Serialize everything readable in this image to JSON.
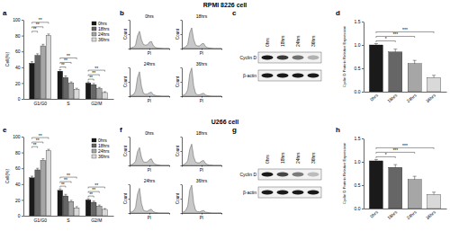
{
  "figure_titles": [
    "RPMI 8226 cell",
    "U266 cell"
  ],
  "chart_data": [
    {
      "type": "bar",
      "panel": "a",
      "y_label": "Cell(%)",
      "categories": [
        "G1/G0",
        "S",
        "G2/M"
      ],
      "series": [
        {
          "name": "0hrs",
          "color": "#1a1a1a",
          "values": [
            45,
            35,
            20
          ],
          "errors": [
            2,
            2,
            1.5
          ]
        },
        {
          "name": "18hrs",
          "color": "#666666",
          "values": [
            55,
            27,
            18
          ],
          "errors": [
            2,
            2,
            1.5
          ]
        },
        {
          "name": "24hrs",
          "color": "#a6a6a6",
          "values": [
            67,
            20,
            13
          ],
          "errors": [
            2,
            1.5,
            1.5
          ]
        },
        {
          "name": "36hrs",
          "color": "#d9d9d9",
          "values": [
            80,
            12,
            8
          ],
          "errors": [
            2,
            1.5,
            1
          ]
        }
      ],
      "significance": [
        [
          "**",
          "**",
          "**"
        ],
        [
          "**",
          "**",
          "**"
        ],
        [
          "**",
          "**",
          "**"
        ]
      ],
      "ylim": [
        0,
        100
      ],
      "yticks": [
        0,
        20,
        40,
        60,
        80,
        100
      ],
      "legend": "upper right"
    },
    {
      "type": "area",
      "panel": "b",
      "x_label": "PI",
      "y_label": "Count",
      "color": "#555555",
      "x": [
        0,
        5,
        10,
        15,
        20,
        25,
        30,
        35,
        40,
        45,
        50,
        55,
        60,
        65,
        70,
        75,
        80,
        85,
        90,
        95,
        100
      ],
      "series": [
        {
          "name": "0hrs",
          "values": [
            2,
            3,
            5,
            12,
            45,
            60,
            30,
            14,
            12,
            13,
            22,
            25,
            10,
            4,
            2,
            1,
            1,
            0,
            0,
            0,
            0
          ]
        },
        {
          "name": "18hrs",
          "values": [
            2,
            3,
            6,
            15,
            55,
            72,
            32,
            12,
            9,
            9,
            16,
            18,
            7,
            3,
            2,
            1,
            0,
            0,
            0,
            0,
            0
          ]
        },
        {
          "name": "24hrs",
          "values": [
            2,
            3,
            6,
            18,
            65,
            85,
            34,
            10,
            7,
            7,
            12,
            14,
            5,
            3,
            1,
            1,
            0,
            0,
            0,
            0,
            0
          ]
        },
        {
          "name": "36hrs",
          "values": [
            2,
            4,
            8,
            22,
            78,
            98,
            36,
            9,
            5,
            5,
            8,
            10,
            4,
            2,
            1,
            0,
            0,
            0,
            0,
            0,
            0
          ]
        }
      ],
      "xlim": [
        0,
        100
      ],
      "xticks": [
        0,
        50,
        100
      ],
      "ylim": [
        0,
        100
      ],
      "yticks": [
        0,
        50,
        100
      ],
      "tick_labels": false
    },
    {
      "type": "blot",
      "panel": "c",
      "color": "#1a1a1a",
      "categories": [
        "0hrs",
        "18hrs",
        "24hrs",
        "36hrs"
      ],
      "series": [
        {
          "name": "Cyclin D",
          "values": [
            1,
            0.85,
            0.6,
            0.3
          ]
        },
        {
          "name": "β-actin",
          "values": [
            1,
            1,
            1,
            1
          ]
        }
      ]
    },
    {
      "type": "bar",
      "panel": "d",
      "y_label": "Cyclin D Protein Relative Expression",
      "categories": [
        "0hrs",
        "18hrs",
        "24hrs",
        "36hrs"
      ],
      "values": [
        1.0,
        0.85,
        0.6,
        0.3
      ],
      "errors": [
        0.03,
        0.06,
        0.07,
        0.05
      ],
      "colors": [
        "#1a1a1a",
        "#666666",
        "#a6a6a6",
        "#d9d9d9"
      ],
      "significance": [
        "*",
        "***",
        "***"
      ],
      "ylim": [
        0,
        1.5
      ],
      "yticks": [
        {
          "value": 0,
          "label": "0.0"
        },
        0.5,
        {
          "value": 1,
          "label": "1.0"
        },
        {
          "value": 1.5,
          "label": "1.5"
        }
      ]
    },
    {
      "type": "bar",
      "panel": "e",
      "y_label": "Cell(%)",
      "categories": [
        "G1/G0",
        "S",
        "G2/M"
      ],
      "series": [
        {
          "name": "0hrs",
          "color": "#1a1a1a",
          "values": [
            48,
            32,
            20
          ],
          "errors": [
            2,
            2,
            1.5
          ]
        },
        {
          "name": "18hrs",
          "color": "#666666",
          "values": [
            58,
            25,
            17
          ],
          "errors": [
            2,
            2,
            1.5
          ]
        },
        {
          "name": "24hrs",
          "color": "#a6a6a6",
          "values": [
            70,
            18,
            12
          ],
          "errors": [
            2,
            1.5,
            1.5
          ]
        },
        {
          "name": "36hrs",
          "color": "#d9d9d9",
          "values": [
            82,
            10,
            8
          ],
          "errors": [
            2,
            1.5,
            1
          ]
        }
      ],
      "significance": [
        [
          "**",
          "**",
          "**"
        ],
        [
          "**",
          "**",
          "**"
        ],
        [
          "**",
          "**",
          "**"
        ]
      ],
      "ylim": [
        0,
        100
      ],
      "yticks": [
        0,
        20,
        40,
        60,
        80,
        100
      ],
      "legend": "upper right"
    },
    {
      "type": "area",
      "panel": "f",
      "x_label": "PI",
      "y_label": "Count",
      "color": "#555555",
      "x": [
        0,
        5,
        10,
        15,
        20,
        25,
        30,
        35,
        40,
        45,
        50,
        55,
        60,
        65,
        70,
        75,
        80,
        85,
        90,
        95,
        100
      ],
      "series": [
        {
          "name": "0hrs",
          "values": [
            1,
            3,
            6,
            14,
            48,
            62,
            28,
            12,
            11,
            12,
            20,
            23,
            9,
            4,
            2,
            1,
            0,
            0,
            0,
            0,
            0
          ]
        },
        {
          "name": "18hrs",
          "values": [
            2,
            3,
            7,
            16,
            56,
            74,
            30,
            11,
            9,
            9,
            15,
            17,
            7,
            3,
            1,
            1,
            0,
            0,
            0,
            0,
            0
          ]
        },
        {
          "name": "24hrs",
          "values": [
            2,
            4,
            7,
            19,
            66,
            86,
            33,
            10,
            7,
            6,
            11,
            13,
            5,
            2,
            1,
            0,
            0,
            0,
            0,
            0,
            0
          ]
        },
        {
          "name": "36hrs",
          "values": [
            2,
            4,
            9,
            24,
            80,
            97,
            35,
            9,
            5,
            4,
            7,
            9,
            3,
            2,
            1,
            0,
            0,
            0,
            0,
            0,
            0
          ]
        }
      ],
      "xlim": [
        0,
        100
      ],
      "xticks": [
        0,
        50,
        100
      ],
      "ylim": [
        0,
        100
      ],
      "yticks": [
        0,
        50,
        100
      ],
      "tick_labels": false
    },
    {
      "type": "blot",
      "panel": "g",
      "color": "#1a1a1a",
      "categories": [
        "0hrs",
        "18hrs",
        "24hrs",
        "36hrs"
      ],
      "series": [
        {
          "name": "Cyclin D",
          "values": [
            1,
            0.8,
            0.55,
            0.25
          ]
        },
        {
          "name": "β-actin",
          "values": [
            1,
            1,
            1,
            1
          ]
        }
      ]
    },
    {
      "type": "bar",
      "panel": "h",
      "y_label": "Cyclin D Protein Relative Expression",
      "categories": [
        "0hrs",
        "18hrs",
        "24hrs",
        "36hrs"
      ],
      "values": [
        1.02,
        0.88,
        0.62,
        0.3
      ],
      "errors": [
        0.03,
        0.06,
        0.07,
        0.05
      ],
      "colors": [
        "#1a1a1a",
        "#666666",
        "#a6a6a6",
        "#d9d9d9"
      ],
      "significance": [
        "*",
        "***",
        "***"
      ],
      "ylim": [
        0,
        1.5
      ],
      "yticks": [
        {
          "value": 0,
          "label": "0.0"
        },
        0.5,
        {
          "value": 1,
          "label": "1.0"
        },
        {
          "value": 1.5,
          "label": "1.5"
        }
      ]
    }
  ]
}
